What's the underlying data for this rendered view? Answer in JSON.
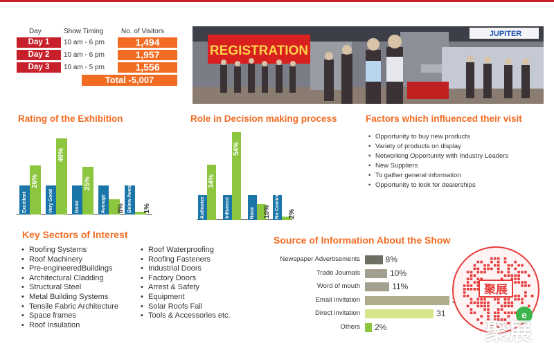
{
  "visitors": {
    "headers": {
      "day": "Day",
      "timing": "Show Timing",
      "count": "No. of Visitors"
    },
    "rows": [
      {
        "day": "Day 1",
        "timing": "10 am - 6 pm",
        "count": "1,494"
      },
      {
        "day": "Day 2",
        "timing": "10 am - 6 pm",
        "count": "1,957"
      },
      {
        "day": "Day 3",
        "timing": "10 am - 5 pm",
        "count": "1,556"
      }
    ],
    "total": "Total -5,007"
  },
  "photo": {
    "registration_sign": "REGISTRATION",
    "booth_sign": "JUPITER"
  },
  "colors": {
    "orange": "#f26b22",
    "red": "#c8202a",
    "blue": "#1a75a8",
    "green": "#8cc63f",
    "gray_dark": "#6e6e62",
    "gray_mid": "#a39f90",
    "olive": "#b0ab8a",
    "lime": "#d6e58a"
  },
  "rating": {
    "title": "Rating of the Exhibition",
    "chart_data": {
      "type": "bar",
      "categories": [
        "Excellent",
        "Very Good",
        "Good",
        "Average",
        "Below Average"
      ],
      "series": [
        {
          "values": [
            26,
            40,
            25,
            8,
            1
          ]
        }
      ],
      "value_labels": [
        "26%",
        "40%",
        "25%",
        "8%",
        "1%"
      ]
    }
  },
  "decision": {
    "title": "Role in Decision making process",
    "chart_data": {
      "type": "bar",
      "categories": [
        "Authorize",
        "Influence",
        "None",
        "No Comments"
      ],
      "series": [
        {
          "values": [
            34,
            54,
            10,
            2
          ]
        }
      ],
      "value_labels": [
        "34%",
        "54%",
        "10%",
        "2%"
      ]
    }
  },
  "factors": {
    "title": "Factors which influenced their visit",
    "items": [
      "Opportunity to buy new products",
      "Variety of products on display",
      "Networking Opportunity with Industry Leaders",
      "New Suppliers",
      "To gather general information",
      "Opportunity to look for dealerships"
    ]
  },
  "sectors": {
    "title": "Key Sectors of Interest",
    "col1": [
      "Roofing Systems",
      "Roof Machinery",
      "Pre-engineeredBuildings",
      "Architectural Cladding",
      "Structural Steel",
      "Metal Building Systems",
      "Tensile Fabric Architecture",
      "Space frames",
      "Roof Insulation"
    ],
    "col2": [
      "Roof Waterproofing",
      "Roofing Fasteners",
      "Industrial Doors",
      "Factory Doors",
      "Arrest & Safety",
      "Equipment",
      "Solar Roofs Fall",
      "Tools & Accessories etc."
    ]
  },
  "source": {
    "title": "Source of Information About the Show",
    "chart_data": {
      "type": "bar",
      "orientation": "horizontal",
      "categories": [
        "Newspaper Advertisements",
        "Trade Journals",
        "Word of mouth",
        "Email Invitation",
        "Direct invitation",
        "Others"
      ],
      "series": [
        {
          "values": [
            8,
            10,
            11,
            38,
            31,
            2
          ]
        }
      ],
      "value_labels": [
        "8%",
        "10%",
        "11%",
        "38",
        "31",
        "2%"
      ]
    }
  },
  "watermark": {
    "text": "聚展",
    "qr_text": "聚展"
  }
}
